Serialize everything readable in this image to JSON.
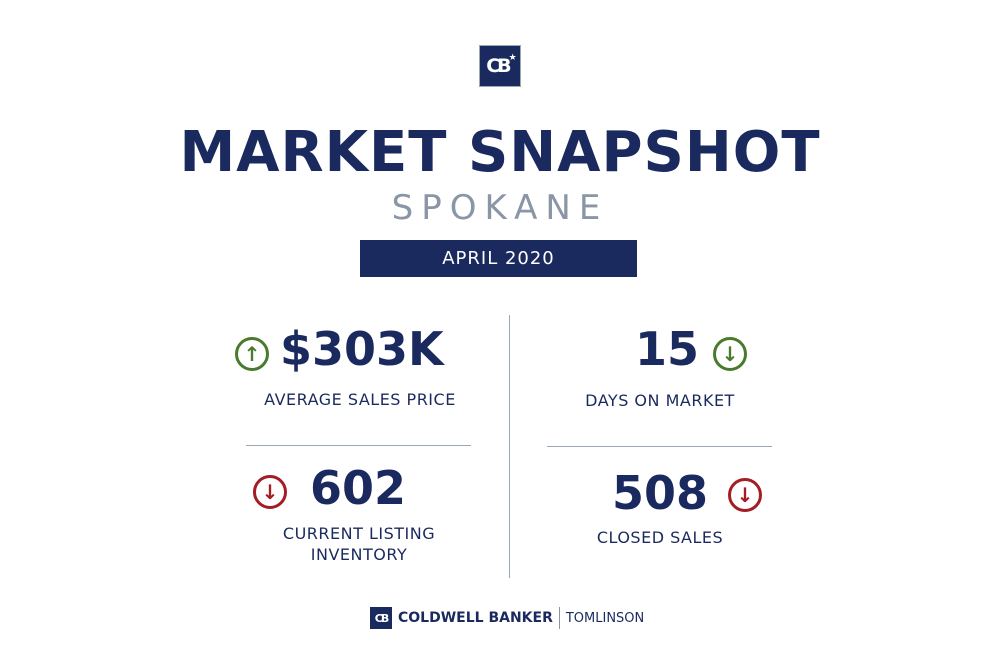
{
  "logo": {
    "text": "CB"
  },
  "title": "MARKET SNAPSHOT",
  "city": "SPOKANE",
  "period": "APRIL 2020",
  "colors": {
    "navy": "#1b2a5e",
    "up": "#4a7a2e",
    "down": "#a31d24",
    "gray": "#8a96a6"
  },
  "stats": [
    {
      "value": "$303K",
      "label": "AVERAGE SALES PRICE",
      "trend": "up",
      "icon": "arrow-up-circle-icon"
    },
    {
      "value": "15",
      "label": "DAYS ON MARKET",
      "trend": "down",
      "icon": "arrow-down-circle-icon"
    },
    {
      "value": "602",
      "label": "CURRENT LISTING INVENTORY",
      "trend": "down",
      "icon": "arrow-down-circle-icon"
    },
    {
      "value": "508",
      "label": "CLOSED SALES",
      "trend": "down",
      "icon": "arrow-down-circle-icon"
    }
  ],
  "footer": {
    "brand": "COLDWELL BANKER",
    "office": "TOMLINSON"
  }
}
